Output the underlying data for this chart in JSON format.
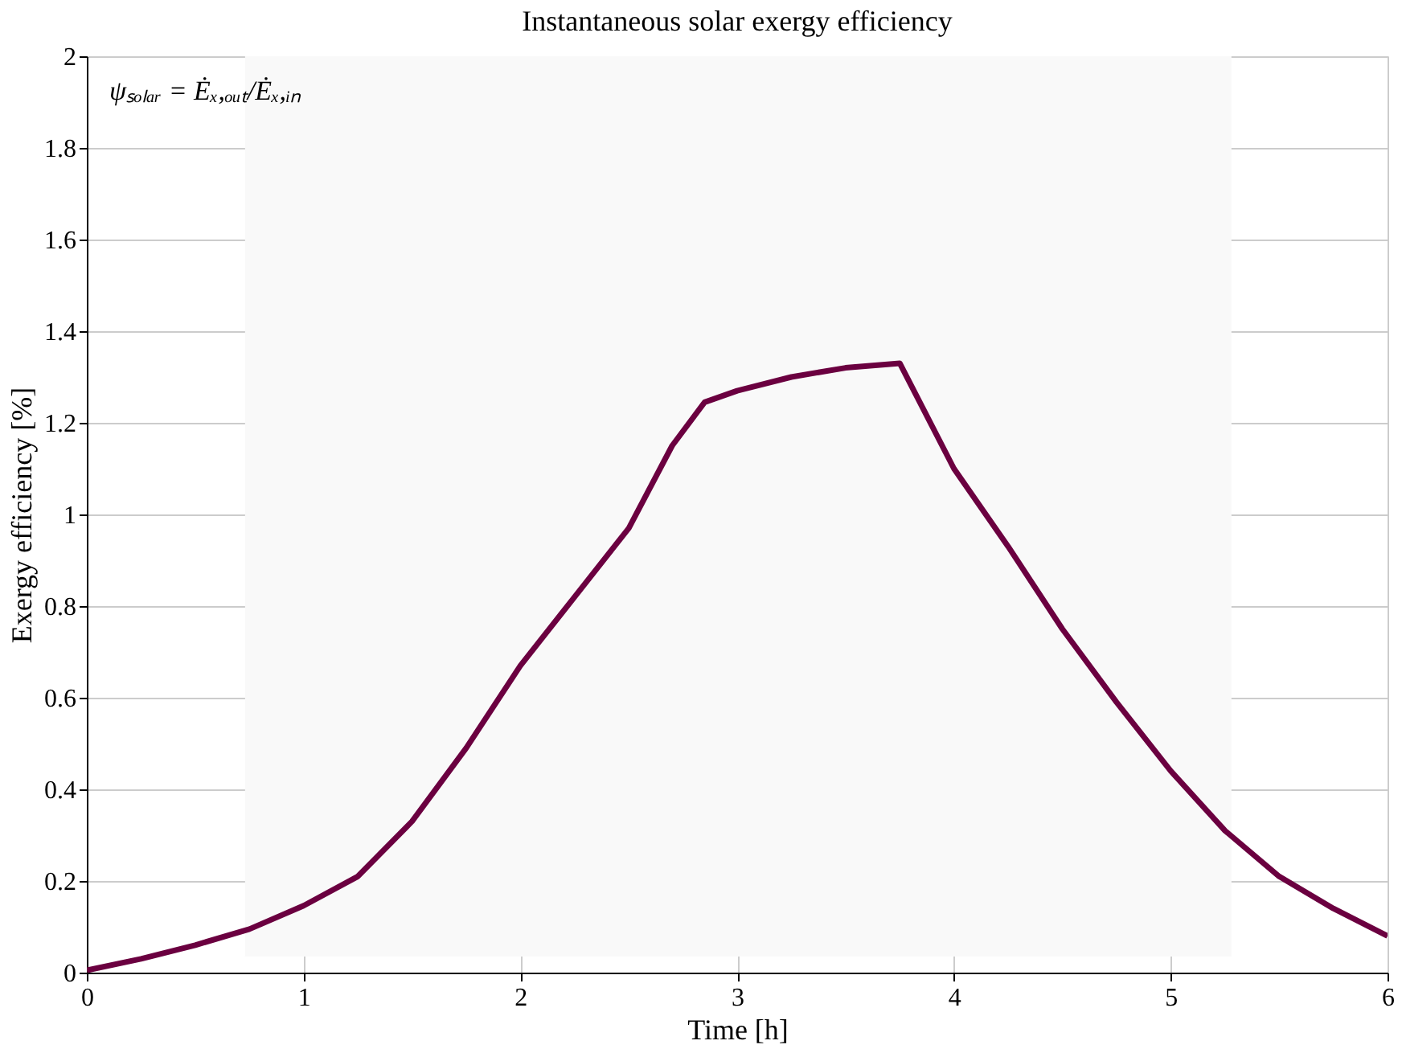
{
  "chart_data": {
    "type": "line",
    "title": "Instantaneous solar exergy efficiency",
    "xlabel": "Time [h]",
    "ylabel": "Exergy efficiency [%]",
    "annotations": [
      "ψₛₒₗₐᵣ = Ėₓ,ₒᵤₜ/Ėₓ,ᵢₙ"
    ],
    "x": [
      0,
      0.25,
      0.5,
      0.75,
      1,
      1.25,
      1.5,
      1.75,
      2,
      2.25,
      2.5,
      2.7,
      2.85,
      3,
      3.25,
      3.5,
      3.75,
      4,
      4.25,
      4.5,
      4.75,
      5,
      5.25,
      5.5,
      5.75,
      6
    ],
    "series": [
      {
        "color": "#6b0040",
        "values": [
          0.005,
          0.03,
          0.06,
          0.095,
          0.146,
          0.21,
          0.33,
          0.49,
          0.67,
          0.82,
          0.97,
          1.15,
          1.245,
          1.27,
          1.3,
          1.32,
          1.33,
          1.1,
          0.93,
          0.75,
          0.59,
          0.44,
          0.31,
          0.21,
          0.14,
          0.08
        ]
      }
    ],
    "bands": [
      {
        "axis": "x",
        "from": 0.73,
        "to": 5.28,
        "color": "#f9f9f9"
      }
    ],
    "xlim": [
      0,
      6
    ],
    "xticks": [
      0,
      1,
      2,
      3,
      4,
      5,
      6
    ],
    "ylim": [
      0,
      2
    ],
    "yticks": [
      0,
      0.2,
      0.4,
      0.6,
      0.8,
      1,
      1.2,
      1.4,
      1.6,
      1.8,
      2
    ],
    "grid": true,
    "marker": "none",
    "line_style": "solid"
  }
}
